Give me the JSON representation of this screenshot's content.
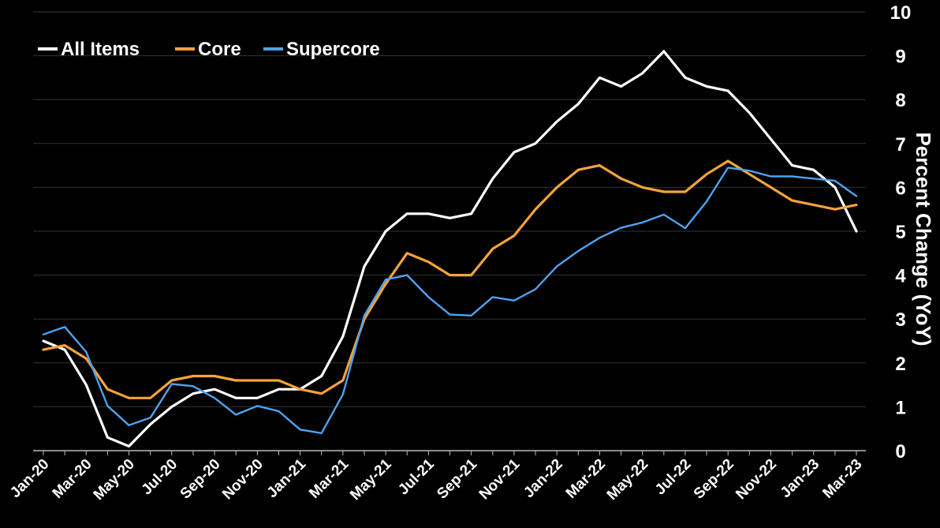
{
  "chart_data": {
    "type": "line",
    "title": "",
    "xlabel": "",
    "ylabel": "Percent Change (YoY)",
    "ylim": [
      0,
      10
    ],
    "yticks": [
      "0",
      "1",
      "2",
      "3",
      "4",
      "5",
      "6",
      "7",
      "8",
      "9",
      "10"
    ],
    "grid": "horizontal",
    "legend_placement": "top-left",
    "x": [
      "Jan-20",
      "Feb-20",
      "Mar-20",
      "Apr-20",
      "May-20",
      "Jun-20",
      "Jul-20",
      "Aug-20",
      "Sep-20",
      "Oct-20",
      "Nov-20",
      "Dec-20",
      "Jan-21",
      "Feb-21",
      "Mar-21",
      "Apr-21",
      "May-21",
      "Jun-21",
      "Jul-21",
      "Aug-21",
      "Sep-21",
      "Oct-21",
      "Nov-21",
      "Dec-21",
      "Jan-22",
      "Feb-22",
      "Mar-22",
      "Apr-22",
      "May-22",
      "Jun-22",
      "Jul-22",
      "Aug-22",
      "Sep-22",
      "Oct-22",
      "Nov-22",
      "Dec-22",
      "Jan-23",
      "Feb-23",
      "Mar-23"
    ],
    "xtick_labels": [
      "Jan-20",
      "Mar-20",
      "May-20",
      "Jul-20",
      "Sep-20",
      "Nov-20",
      "Jan-21",
      "Mar-21",
      "May-21",
      "Jul-21",
      "Sep-21",
      "Nov-21",
      "Jan-22",
      "Mar-22",
      "May-22",
      "Jul-22",
      "Sep-22",
      "Nov-22",
      "Jan-23",
      "Mar-23"
    ],
    "series": [
      {
        "name": "All Items",
        "color": "#ffffff",
        "values": [
          2.5,
          2.3,
          1.5,
          0.3,
          0.1,
          0.6,
          1.0,
          1.3,
          1.4,
          1.2,
          1.2,
          1.4,
          1.4,
          1.7,
          2.6,
          4.2,
          5.0,
          5.4,
          5.4,
          5.3,
          5.4,
          6.2,
          6.8,
          7.0,
          7.5,
          7.9,
          8.5,
          8.3,
          8.6,
          9.1,
          8.5,
          8.3,
          8.2,
          7.7,
          7.1,
          6.5,
          6.4,
          6.0,
          5.0
        ]
      },
      {
        "name": "Core",
        "color": "#f5a33c",
        "values": [
          2.3,
          2.4,
          2.1,
          1.4,
          1.2,
          1.2,
          1.6,
          1.7,
          1.7,
          1.6,
          1.6,
          1.6,
          1.4,
          1.3,
          1.6,
          3.0,
          3.8,
          4.5,
          4.3,
          4.0,
          4.0,
          4.6,
          4.9,
          5.5,
          6.0,
          6.4,
          6.5,
          6.2,
          6.0,
          5.9,
          5.9,
          6.3,
          6.6,
          6.3,
          6.0,
          5.7,
          5.6,
          5.5,
          5.6
        ]
      },
      {
        "name": "Supercore",
        "color": "#4ea3f0",
        "values": [
          2.65,
          2.82,
          2.25,
          1.02,
          0.58,
          0.75,
          1.52,
          1.47,
          1.2,
          0.82,
          1.02,
          0.9,
          0.48,
          0.4,
          1.28,
          3.08,
          3.9,
          4.0,
          3.5,
          3.1,
          3.08,
          3.5,
          3.42,
          3.68,
          4.2,
          4.55,
          4.85,
          5.08,
          5.2,
          5.38,
          5.07,
          5.68,
          6.45,
          6.38,
          6.25,
          6.25,
          6.2,
          6.15,
          5.8
        ]
      }
    ]
  }
}
